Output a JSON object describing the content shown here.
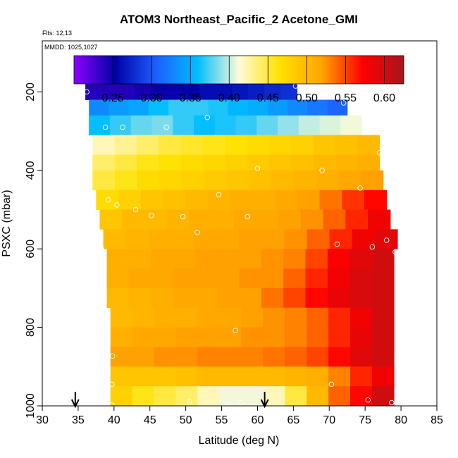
{
  "chart_data": {
    "type": "heatmap",
    "title": "ATOM3 Northeast_Pacific_2 Acetone_GMI",
    "flights_label": "Flts: 12,13",
    "dates_label": "MMDD: 1025,1027",
    "xlabel": "Latitude (deg N)",
    "ylabel": "PSXC (mbar)",
    "xlim": [
      30,
      85
    ],
    "ylim": [
      1000,
      70
    ],
    "x_ticks": [
      30,
      35,
      40,
      45,
      50,
      55,
      60,
      65,
      70,
      75,
      80,
      85
    ],
    "y_ticks": [
      200,
      400,
      600,
      800,
      1000
    ],
    "colorbar": {
      "min": 0.2,
      "max": 0.625,
      "ticks": [
        0.25,
        0.3,
        0.35,
        0.4,
        0.45,
        0.5,
        0.55,
        0.6
      ],
      "tick_labels": [
        "0.25",
        "0.30",
        "0.35",
        "0.40",
        "0.45",
        "0.50",
        "0.55",
        "0.60"
      ],
      "colors": [
        "#8c00ff",
        "#0000a6",
        "#1d5fff",
        "#00beff",
        "#fffbd9",
        "#ffe100",
        "#ffa500",
        "#ff0000",
        "#a6161c"
      ]
    },
    "rows": [
      {
        "p_top": 170,
        "p_bot": 220,
        "lat_start": 36.0,
        "lat_end": 65.5,
        "values": [
          0.24,
          0.24,
          0.24,
          0.245,
          0.25,
          0.25,
          0.255,
          0.26,
          0.26,
          0.265,
          0.27,
          0.275,
          0.28
        ]
      },
      {
        "p_top": 220,
        "p_bot": 260,
        "lat_start": 36.5,
        "lat_end": 72.5,
        "values": [
          0.33,
          0.34,
          0.345,
          0.36,
          0.37,
          0.37,
          0.365,
          0.355,
          0.35,
          0.34,
          0.33,
          0.32,
          0.31
        ]
      },
      {
        "p_top": 260,
        "p_bot": 310,
        "lat_start": 36.5,
        "lat_end": 74.5,
        "values": [
          0.36,
          0.37,
          0.38,
          0.385,
          0.37,
          0.36,
          0.365,
          0.37,
          0.38,
          0.39,
          0.4,
          0.405,
          0.41
        ]
      },
      {
        "p_top": 310,
        "p_bot": 360,
        "lat_start": 37.0,
        "lat_end": 77.0,
        "values": [
          0.42,
          0.43,
          0.44,
          0.45,
          0.455,
          0.46,
          0.465,
          0.47,
          0.475,
          0.48,
          0.49,
          0.495,
          0.5
        ]
      },
      {
        "p_top": 360,
        "p_bot": 400,
        "lat_start": 37.0,
        "lat_end": 77.0,
        "values": [
          0.44,
          0.45,
          0.46,
          0.465,
          0.47,
          0.475,
          0.48,
          0.485,
          0.49,
          0.495,
          0.5,
          0.505,
          0.51
        ]
      },
      {
        "p_top": 400,
        "p_bot": 450,
        "lat_start": 37.0,
        "lat_end": 77.5,
        "values": [
          0.45,
          0.46,
          0.47,
          0.475,
          0.48,
          0.485,
          0.49,
          0.495,
          0.5,
          0.505,
          0.51,
          0.515,
          0.52
        ]
      },
      {
        "p_top": 450,
        "p_bot": 500,
        "lat_start": 37.5,
        "lat_end": 78.0,
        "values": [
          0.47,
          0.48,
          0.49,
          0.495,
          0.5,
          0.505,
          0.51,
          0.51,
          0.515,
          0.52,
          0.535,
          0.555,
          0.57
        ]
      },
      {
        "p_top": 500,
        "p_bot": 550,
        "lat_start": 38.0,
        "lat_end": 78.5,
        "values": [
          0.49,
          0.5,
          0.5,
          0.505,
          0.51,
          0.51,
          0.515,
          0.515,
          0.52,
          0.525,
          0.54,
          0.56,
          0.58
        ]
      },
      {
        "p_top": 550,
        "p_bot": 600,
        "lat_start": 38.5,
        "lat_end": 79.5,
        "values": [
          0.5,
          0.505,
          0.51,
          0.51,
          0.515,
          0.515,
          0.52,
          0.52,
          0.525,
          0.54,
          0.56,
          0.58,
          0.59
        ]
      },
      {
        "p_top": 600,
        "p_bot": 650,
        "lat_start": 39.0,
        "lat_end": 79.0,
        "values": [
          0.51,
          0.51,
          0.515,
          0.515,
          0.52,
          0.52,
          0.52,
          0.525,
          0.53,
          0.55,
          0.575,
          0.59,
          0.6
        ]
      },
      {
        "p_top": 650,
        "p_bot": 700,
        "lat_start": 39.0,
        "lat_end": 79.0,
        "values": [
          0.51,
          0.515,
          0.515,
          0.52,
          0.52,
          0.52,
          0.525,
          0.525,
          0.54,
          0.56,
          0.58,
          0.595,
          0.6
        ]
      },
      {
        "p_top": 700,
        "p_bot": 750,
        "lat_start": 39.0,
        "lat_end": 79.0,
        "values": [
          0.5,
          0.505,
          0.51,
          0.515,
          0.515,
          0.52,
          0.52,
          0.535,
          0.55,
          0.57,
          0.585,
          0.595,
          0.6
        ]
      },
      {
        "p_top": 750,
        "p_bot": 800,
        "lat_start": 39.5,
        "lat_end": 79.0,
        "values": [
          0.5,
          0.505,
          0.51,
          0.51,
          0.515,
          0.515,
          0.52,
          0.525,
          0.53,
          0.54,
          0.56,
          0.58,
          0.6
        ]
      },
      {
        "p_top": 800,
        "p_bot": 850,
        "lat_start": 39.5,
        "lat_end": 79.0,
        "values": [
          0.51,
          0.515,
          0.515,
          0.52,
          0.52,
          0.52,
          0.525,
          0.525,
          0.53,
          0.54,
          0.56,
          0.585,
          0.6
        ]
      },
      {
        "p_top": 850,
        "p_bot": 900,
        "lat_start": 39.5,
        "lat_end": 79.0,
        "values": [
          0.52,
          0.52,
          0.525,
          0.525,
          0.53,
          0.53,
          0.53,
          0.535,
          0.54,
          0.55,
          0.57,
          0.59,
          0.6
        ]
      },
      {
        "p_top": 900,
        "p_bot": 950,
        "lat_start": 39.5,
        "lat_end": 79.0,
        "values": [
          0.49,
          0.49,
          0.49,
          0.495,
          0.5,
          0.5,
          0.5,
          0.5,
          0.505,
          0.51,
          0.53,
          0.56,
          0.58
        ]
      },
      {
        "p_top": 950,
        "p_bot": 1000,
        "lat_start": 39.5,
        "lat_end": 79.0,
        "values": [
          0.48,
          0.46,
          0.45,
          0.44,
          0.42,
          0.41,
          0.41,
          0.42,
          0.45,
          0.5,
          0.54,
          0.57,
          0.6
        ]
      }
    ],
    "observations": [
      {
        "lat": 36.2,
        "p": 200
      },
      {
        "lat": 65.3,
        "p": 185
      },
      {
        "lat": 72.0,
        "p": 228
      },
      {
        "lat": 53.0,
        "p": 265
      },
      {
        "lat": 38.8,
        "p": 290
      },
      {
        "lat": 41.2,
        "p": 290
      },
      {
        "lat": 47.3,
        "p": 290
      },
      {
        "lat": 77.0,
        "p": 355
      },
      {
        "lat": 60.0,
        "p": 395
      },
      {
        "lat": 69.0,
        "p": 400
      },
      {
        "lat": 74.3,
        "p": 445
      },
      {
        "lat": 54.6,
        "p": 462
      },
      {
        "lat": 39.2,
        "p": 475
      },
      {
        "lat": 40.4,
        "p": 488
      },
      {
        "lat": 43.0,
        "p": 500
      },
      {
        "lat": 45.2,
        "p": 515
      },
      {
        "lat": 49.6,
        "p": 518
      },
      {
        "lat": 58.6,
        "p": 518
      },
      {
        "lat": 51.6,
        "p": 558
      },
      {
        "lat": 78.0,
        "p": 578
      },
      {
        "lat": 71.1,
        "p": 588
      },
      {
        "lat": 76.0,
        "p": 595
      },
      {
        "lat": 38.2,
        "p": 598
      },
      {
        "lat": 79.2,
        "p": 608
      },
      {
        "lat": 56.9,
        "p": 808
      },
      {
        "lat": 39.8,
        "p": 873
      },
      {
        "lat": 70.3,
        "p": 945
      },
      {
        "lat": 39.7,
        "p": 945
      },
      {
        "lat": 75.4,
        "p": 985
      },
      {
        "lat": 50.5,
        "p": 990
      },
      {
        "lat": 55.9,
        "p": 995
      },
      {
        "lat": 57.7,
        "p": 993
      },
      {
        "lat": 39.7,
        "p": 998
      },
      {
        "lat": 78.7,
        "p": 992
      }
    ],
    "markers": [
      {
        "lat": 34.6
      },
      {
        "lat": 61.0
      }
    ]
  }
}
